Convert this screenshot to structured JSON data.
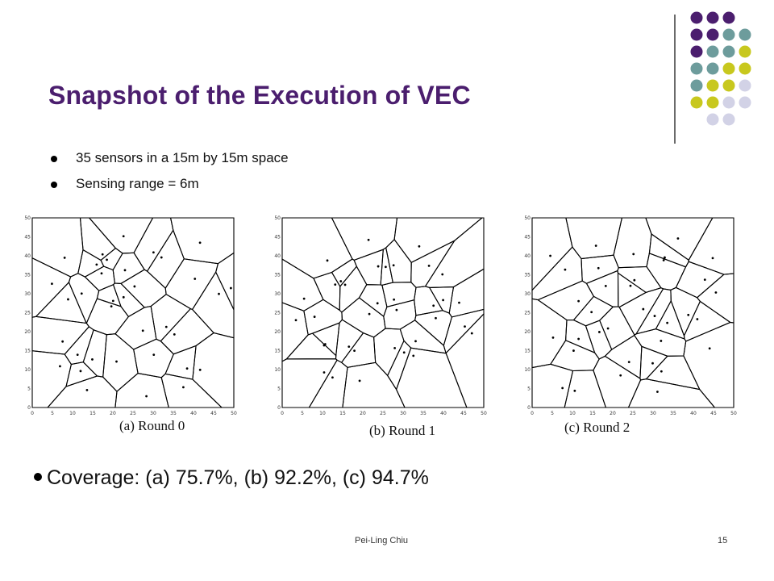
{
  "slide": {
    "title": "Snapshot of the Execution of VEC",
    "bullets": [
      "35 sensors in a 15m by 15m space",
      "Sensing range = 6m"
    ],
    "coverage": "Coverage:  (a) 75.7%, (b) 92.2%, (c) 94.7%",
    "footer_author": "Pei-Ling Chiu",
    "page_number": "15"
  },
  "figures": [
    {
      "caption": "(a) Round  0"
    },
    {
      "caption": "(b)  Round  1"
    },
    {
      "caption": "(c)  Round  2"
    }
  ],
  "figure_axis": {
    "ticks": [
      "0",
      "5",
      "10",
      "15",
      "20",
      "25",
      "30",
      "35",
      "40",
      "45",
      "50"
    ]
  },
  "theme": {
    "title_color": "#4b1e6e",
    "dot_colors": {
      "purple": "#4b1e6e",
      "teal": "#6d9c9c",
      "olive": "#c8c81e",
      "lavender": "#d2d2e6"
    }
  }
}
